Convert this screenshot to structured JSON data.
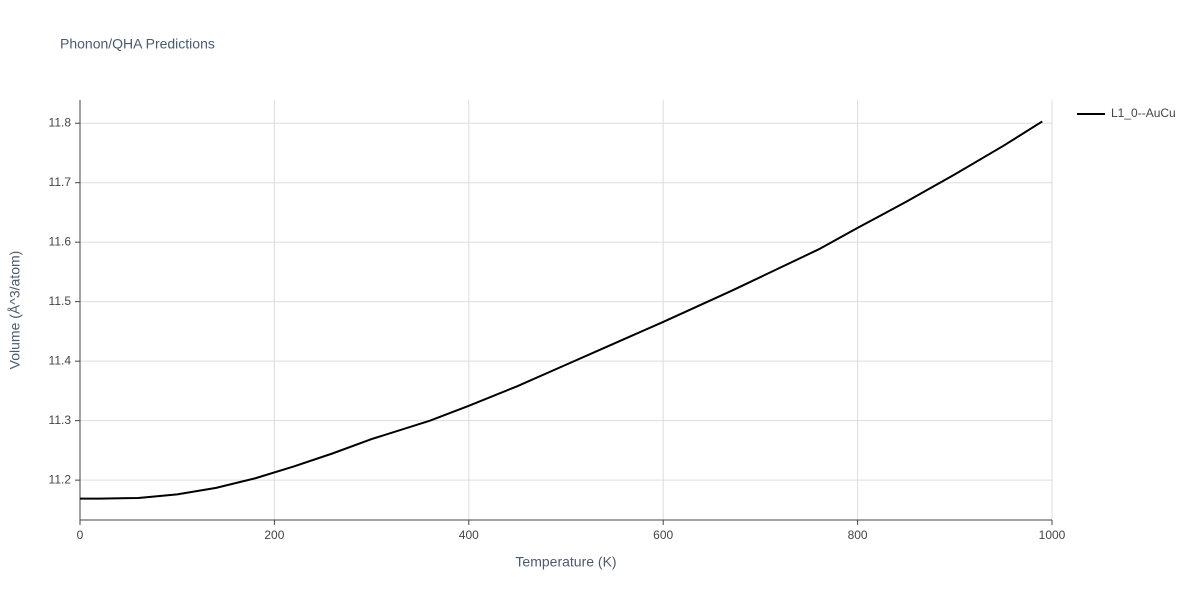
{
  "chart_data": {
    "type": "line",
    "title": "Phonon/QHA Predictions",
    "x_label": "Temperature (K)",
    "y_label": "Volume (Å^3/atom)",
    "x": [
      0,
      20,
      60,
      100,
      140,
      180,
      220,
      260,
      300,
      360,
      400,
      450,
      500,
      550,
      600,
      670,
      760,
      800,
      850,
      900,
      950,
      990
    ],
    "series": [
      {
        "name": "L1_0--AuCu",
        "color": "#000000",
        "values": [
          11.169,
          11.169,
          11.17,
          11.176,
          11.187,
          11.203,
          11.223,
          11.245,
          11.269,
          11.3,
          11.325,
          11.358,
          11.394,
          11.43,
          11.466,
          11.518,
          11.588,
          11.624,
          11.668,
          11.714,
          11.762,
          11.803
        ]
      }
    ],
    "xlim": [
      0,
      1000
    ],
    "xticks": [
      0,
      200,
      400,
      600,
      800,
      1000
    ],
    "ylim": [
      11.133,
      11.839
    ],
    "yticks": [
      11.2,
      11.3,
      11.4,
      11.5,
      11.6,
      11.7,
      11.8
    ],
    "grid": true,
    "legend": "right"
  }
}
